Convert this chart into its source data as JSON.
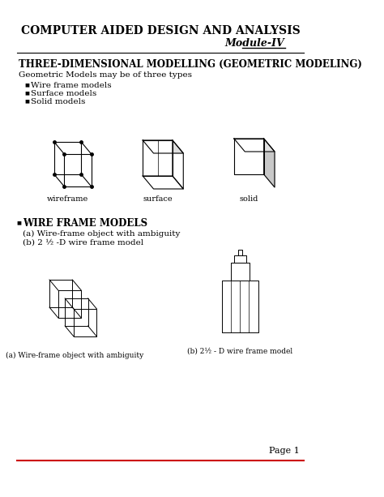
{
  "title": "COMPUTER AIDED DESIGN AND ANALYSIS",
  "subtitle": "Module-IV",
  "section_title": "THREE-DIMENSIONAL MODELLING (GEOMETRIC MODELING)",
  "intro_text": "Geometric Models may be of three types",
  "bullet_points": [
    "Wire frame models",
    "Surface models",
    "Solid models"
  ],
  "cube_labels": [
    "wireframe",
    "surface",
    "solid"
  ],
  "wire_frame_section": "WIRE FRAME MODELS",
  "wire_frame_item_a": "(a) Wire-frame object with ambiguity",
  "wire_frame_item_b": "(b) 2 ½ -D wire frame model",
  "caption_a": "(a) Wire-frame object with ambiguity",
  "caption_b": "(b) 2½ - D wire frame model",
  "page_label": "Page 1",
  "bg_color": "#ffffff",
  "line_color": "#000000",
  "text_color": "#000000",
  "red_color": "#cc0000"
}
